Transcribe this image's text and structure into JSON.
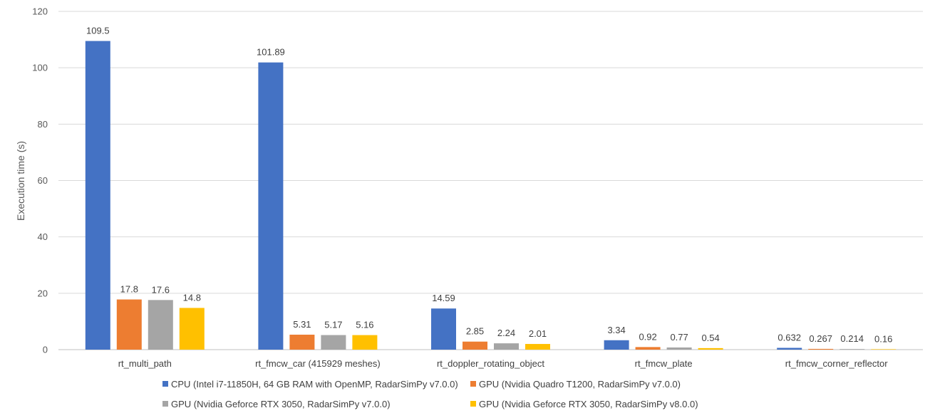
{
  "chart_data": {
    "type": "bar",
    "title": "",
    "xlabel": "",
    "ylabel": "Execution time (s)",
    "ylim": [
      0,
      120
    ],
    "yticks": [
      0,
      20,
      40,
      60,
      80,
      100,
      120
    ],
    "grid": true,
    "legend_position": "bottom",
    "categories": [
      "rt_multi_path",
      "rt_fmcw_car (415929 meshes)",
      "rt_doppler_rotating_object",
      "rt_fmcw_plate",
      "rt_fmcw_corner_reflector"
    ],
    "series": [
      {
        "name": "CPU (Intel i7-11850H, 64 GB RAM with OpenMP, RadarSimPy v7.0.0)",
        "color": "#4472C4",
        "values": [
          109.5,
          101.89,
          14.59,
          3.34,
          0.632
        ],
        "labels": [
          "109.5",
          "101.89",
          "14.59",
          "3.34",
          "0.632"
        ]
      },
      {
        "name": "GPU (Nvidia Quadro T1200, RadarSimPy v7.0.0)",
        "color": "#ED7D31",
        "values": [
          17.8,
          5.31,
          2.85,
          0.92,
          0.267
        ],
        "labels": [
          "17.8",
          "5.31",
          "2.85",
          "0.92",
          "0.267"
        ]
      },
      {
        "name": "GPU (Nvidia Geforce RTX 3050, RadarSimPy v7.0.0)",
        "color": "#A5A5A5",
        "values": [
          17.6,
          5.17,
          2.24,
          0.77,
          0.214
        ],
        "labels": [
          "17.6",
          "5.17",
          "2.24",
          "0.77",
          "0.214"
        ]
      },
      {
        "name": "GPU (Nvidia Geforce RTX 3050, RadarSimPy v8.0.0)",
        "color": "#FFC000",
        "values": [
          14.8,
          5.16,
          2.01,
          0.54,
          0.16
        ],
        "labels": [
          "14.8",
          "5.16",
          "2.01",
          "0.54",
          "0.16"
        ]
      }
    ]
  }
}
